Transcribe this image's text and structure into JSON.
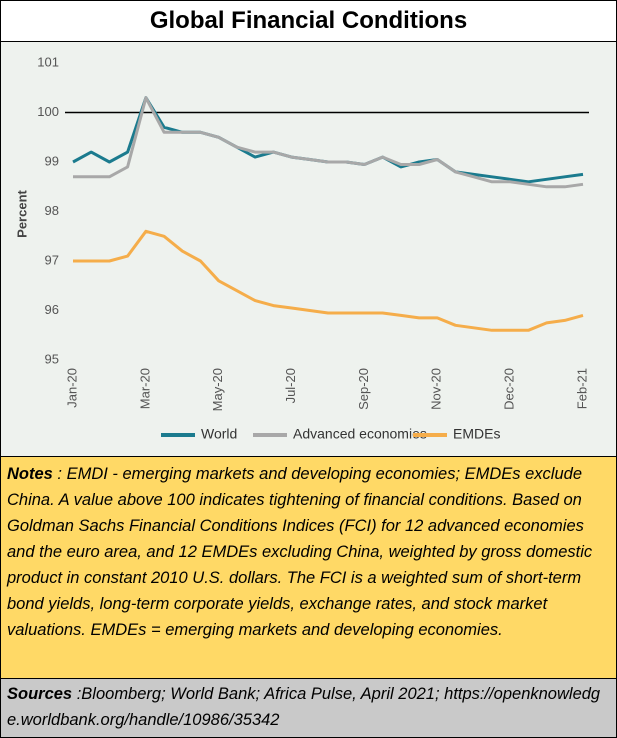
{
  "chart_data": {
    "type": "line",
    "title": "Global Financial Conditions",
    "y_label": "Percent",
    "categories": [
      "Jan-20",
      null,
      null,
      null,
      "Mar-20",
      null,
      null,
      null,
      "May-20",
      null,
      null,
      null,
      "Jul-20",
      null,
      null,
      null,
      "Sep-20",
      null,
      null,
      null,
      "Nov-20",
      null,
      null,
      null,
      "Dec-20",
      null,
      null,
      null,
      "Feb-21"
    ],
    "series": [
      {
        "name": "World",
        "color": "#1b7b8e",
        "values": [
          99.0,
          99.2,
          99.0,
          99.2,
          100.3,
          99.7,
          99.6,
          99.6,
          99.5,
          99.3,
          99.1,
          99.2,
          99.1,
          99.05,
          99.0,
          99.0,
          98.95,
          99.1,
          98.9,
          99.0,
          99.05,
          98.8,
          98.75,
          98.7,
          98.65,
          98.6,
          98.65,
          98.7,
          98.75
        ]
      },
      {
        "name": "Advanced economies",
        "color": "#a8a8a8",
        "values": [
          98.7,
          98.7,
          98.7,
          98.9,
          100.3,
          99.6,
          99.6,
          99.6,
          99.5,
          99.3,
          99.2,
          99.2,
          99.1,
          99.05,
          99.0,
          99.0,
          98.95,
          99.1,
          98.95,
          98.95,
          99.05,
          98.8,
          98.7,
          98.6,
          98.6,
          98.55,
          98.5,
          98.5,
          98.55
        ]
      },
      {
        "name": "EMDEs",
        "color": "#f5ad4a",
        "values": [
          97.0,
          97.0,
          97.0,
          97.1,
          97.6,
          97.5,
          97.2,
          97.0,
          96.6,
          96.4,
          96.2,
          96.1,
          96.05,
          96.0,
          95.95,
          95.95,
          95.95,
          95.95,
          95.9,
          95.85,
          95.85,
          95.7,
          95.65,
          95.6,
          95.6,
          95.6,
          95.75,
          95.8,
          95.9
        ]
      }
    ],
    "ylim": [
      95,
      101
    ],
    "yticks": [
      95,
      96,
      97,
      98,
      99,
      100,
      101
    ],
    "reference_line": 100,
    "grid": false,
    "legend": "bottom"
  },
  "notes": {
    "label": "Notes",
    "text": " : EMDI - emerging markets and developing economies; EMDEs exclude China. A value above 100 indicates tightening of financial conditions. Based on Goldman Sachs Financial Conditions Indices (FCI) for 12 advanced economies and the euro area, and 12 EMDEs excluding China, weighted by gross domestic product in constant 2010 U.S. dollars. The FCI is a weighted sum of short-term bond yields, long-term corporate yields, exchange rates, and stock market valuations. EMDEs = emerging markets and developing economies."
  },
  "sources": {
    "label": "Sources",
    "text": " :Bloomberg; World Bank;  Africa Pulse, April 2021; https://openknowledge.worldbank.org/handle/10986/35342"
  }
}
